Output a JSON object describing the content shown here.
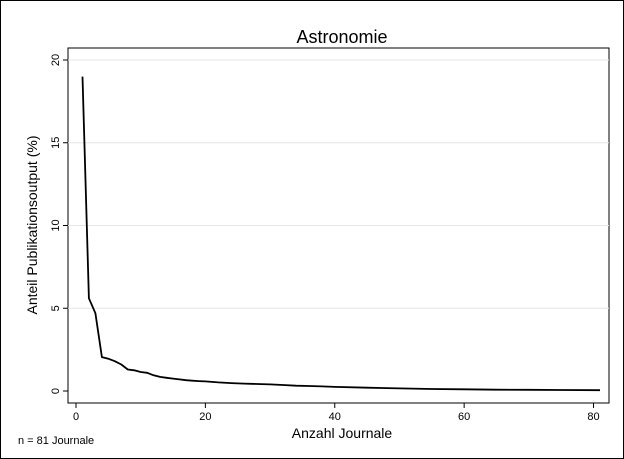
{
  "chart_data": {
    "type": "line",
    "title": "Astronomie",
    "xlabel": "Anzahl Journale",
    "ylabel": "Anteil Publikationsoutput (%)",
    "xlim": [
      0,
      82
    ],
    "ylim": [
      0,
      20
    ],
    "xticks": [
      0,
      20,
      40,
      60,
      80
    ],
    "yticks": [
      0,
      5,
      10,
      15,
      20
    ],
    "grid": "horizontal",
    "line_color": "#000000",
    "series": [
      {
        "x": [
          1,
          2,
          3,
          4,
          5,
          6,
          7,
          8,
          9,
          10,
          11,
          12,
          13,
          14,
          15,
          16,
          17,
          18,
          19,
          20,
          22,
          24,
          26,
          28,
          30,
          32,
          34,
          36,
          38,
          40,
          45,
          50,
          55,
          60,
          65,
          70,
          75,
          81
        ],
        "y": [
          19.0,
          5.6,
          4.7,
          2.05,
          1.95,
          1.8,
          1.6,
          1.3,
          1.25,
          1.15,
          1.1,
          0.95,
          0.85,
          0.8,
          0.75,
          0.7,
          0.65,
          0.62,
          0.6,
          0.58,
          0.52,
          0.48,
          0.45,
          0.42,
          0.4,
          0.36,
          0.32,
          0.3,
          0.28,
          0.25,
          0.2,
          0.16,
          0.12,
          0.1,
          0.08,
          0.07,
          0.06,
          0.05
        ]
      }
    ]
  },
  "footnote": "n = 81 Journale"
}
